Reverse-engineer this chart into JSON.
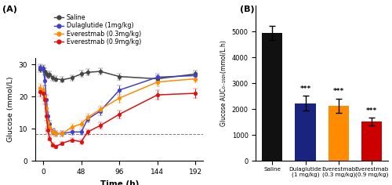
{
  "line_time": [
    -4,
    0,
    2,
    4,
    6,
    8,
    12,
    16,
    24,
    36,
    48,
    56,
    72,
    96,
    144,
    192
  ],
  "saline_mean": [
    28.5,
    28.8,
    27.8,
    27.0,
    26.5,
    26.8,
    25.8,
    25.5,
    25.2,
    25.8,
    27.0,
    27.5,
    27.8,
    26.2,
    25.5,
    27.0
  ],
  "saline_sd": [
    1.0,
    1.0,
    0.9,
    0.9,
    0.8,
    0.9,
    0.8,
    0.8,
    0.8,
    0.9,
    1.0,
    1.0,
    1.0,
    1.0,
    1.0,
    1.0
  ],
  "dula_mean": [
    29.0,
    28.5,
    25.0,
    19.0,
    14.0,
    11.5,
    9.0,
    8.5,
    8.5,
    9.0,
    9.0,
    13.0,
    15.5,
    22.0,
    26.0,
    26.5
  ],
  "dula_sd": [
    1.0,
    1.0,
    1.5,
    1.5,
    1.2,
    1.0,
    0.9,
    0.8,
    0.8,
    0.9,
    0.9,
    1.0,
    1.2,
    1.5,
    1.0,
    1.0
  ],
  "ever03_mean": [
    22.5,
    22.0,
    20.0,
    16.5,
    12.0,
    10.5,
    9.0,
    8.5,
    8.5,
    10.5,
    11.5,
    13.5,
    16.0,
    19.5,
    24.5,
    25.5
  ],
  "ever03_sd": [
    1.5,
    1.5,
    1.5,
    1.5,
    1.2,
    1.0,
    0.9,
    0.9,
    0.8,
    1.0,
    1.0,
    1.2,
    1.2,
    1.5,
    1.2,
    1.2
  ],
  "ever09_mean": [
    21.5,
    21.0,
    19.0,
    14.0,
    9.5,
    7.0,
    5.0,
    4.5,
    5.5,
    6.5,
    6.0,
    9.0,
    11.0,
    14.5,
    20.5,
    21.0
  ],
  "ever09_sd": [
    1.5,
    1.5,
    1.5,
    1.5,
    1.0,
    0.7,
    0.6,
    0.5,
    0.5,
    0.6,
    0.7,
    0.8,
    1.0,
    1.2,
    1.5,
    1.5
  ],
  "saline_color": "#444444",
  "dula_color": "#4040CC",
  "ever03_color": "#FF8C00",
  "ever09_color": "#DD1111",
  "dashed_y": 8.35,
  "bar_categories": [
    "Saline",
    "Dulaglutide\n(1 mg/kg)",
    "Everestmab\n(0.3 mg/kg)",
    "Everestmab\n(0.9 mg/kg)"
  ],
  "bar_values": [
    4950,
    2230,
    2130,
    1520
  ],
  "bar_errors": [
    280,
    280,
    280,
    160
  ],
  "bar_colors": [
    "#111111",
    "#1a237e",
    "#FF8C00",
    "#CC0000"
  ],
  "bar_sig": [
    "",
    "***",
    "***",
    "***"
  ],
  "ylim_line": [
    0,
    32
  ],
  "yticks_line": [
    0,
    10,
    20,
    30
  ],
  "xticks_line": [
    0,
    48,
    96,
    144,
    192
  ],
  "xlim_line": [
    -10,
    202
  ],
  "ylim_bar": [
    0,
    6000
  ],
  "yticks_bar": [
    0,
    1000,
    2000,
    3000,
    4000,
    5000
  ],
  "ylabel_line": "Glucose (mmol/L)",
  "xlabel_line": "Time (h)",
  "ylabel_bar": "Glucose AUC₀₋₁₉₂ₕ(mmol/L.h)",
  "legend_labels": [
    "Saline",
    "Dulaglutide (1mg/kg)",
    "Everestmab (0.3mg/kg)",
    "Everestmab (0.9mg/kg)"
  ],
  "panel_A": "(A)",
  "panel_B": "(B)"
}
